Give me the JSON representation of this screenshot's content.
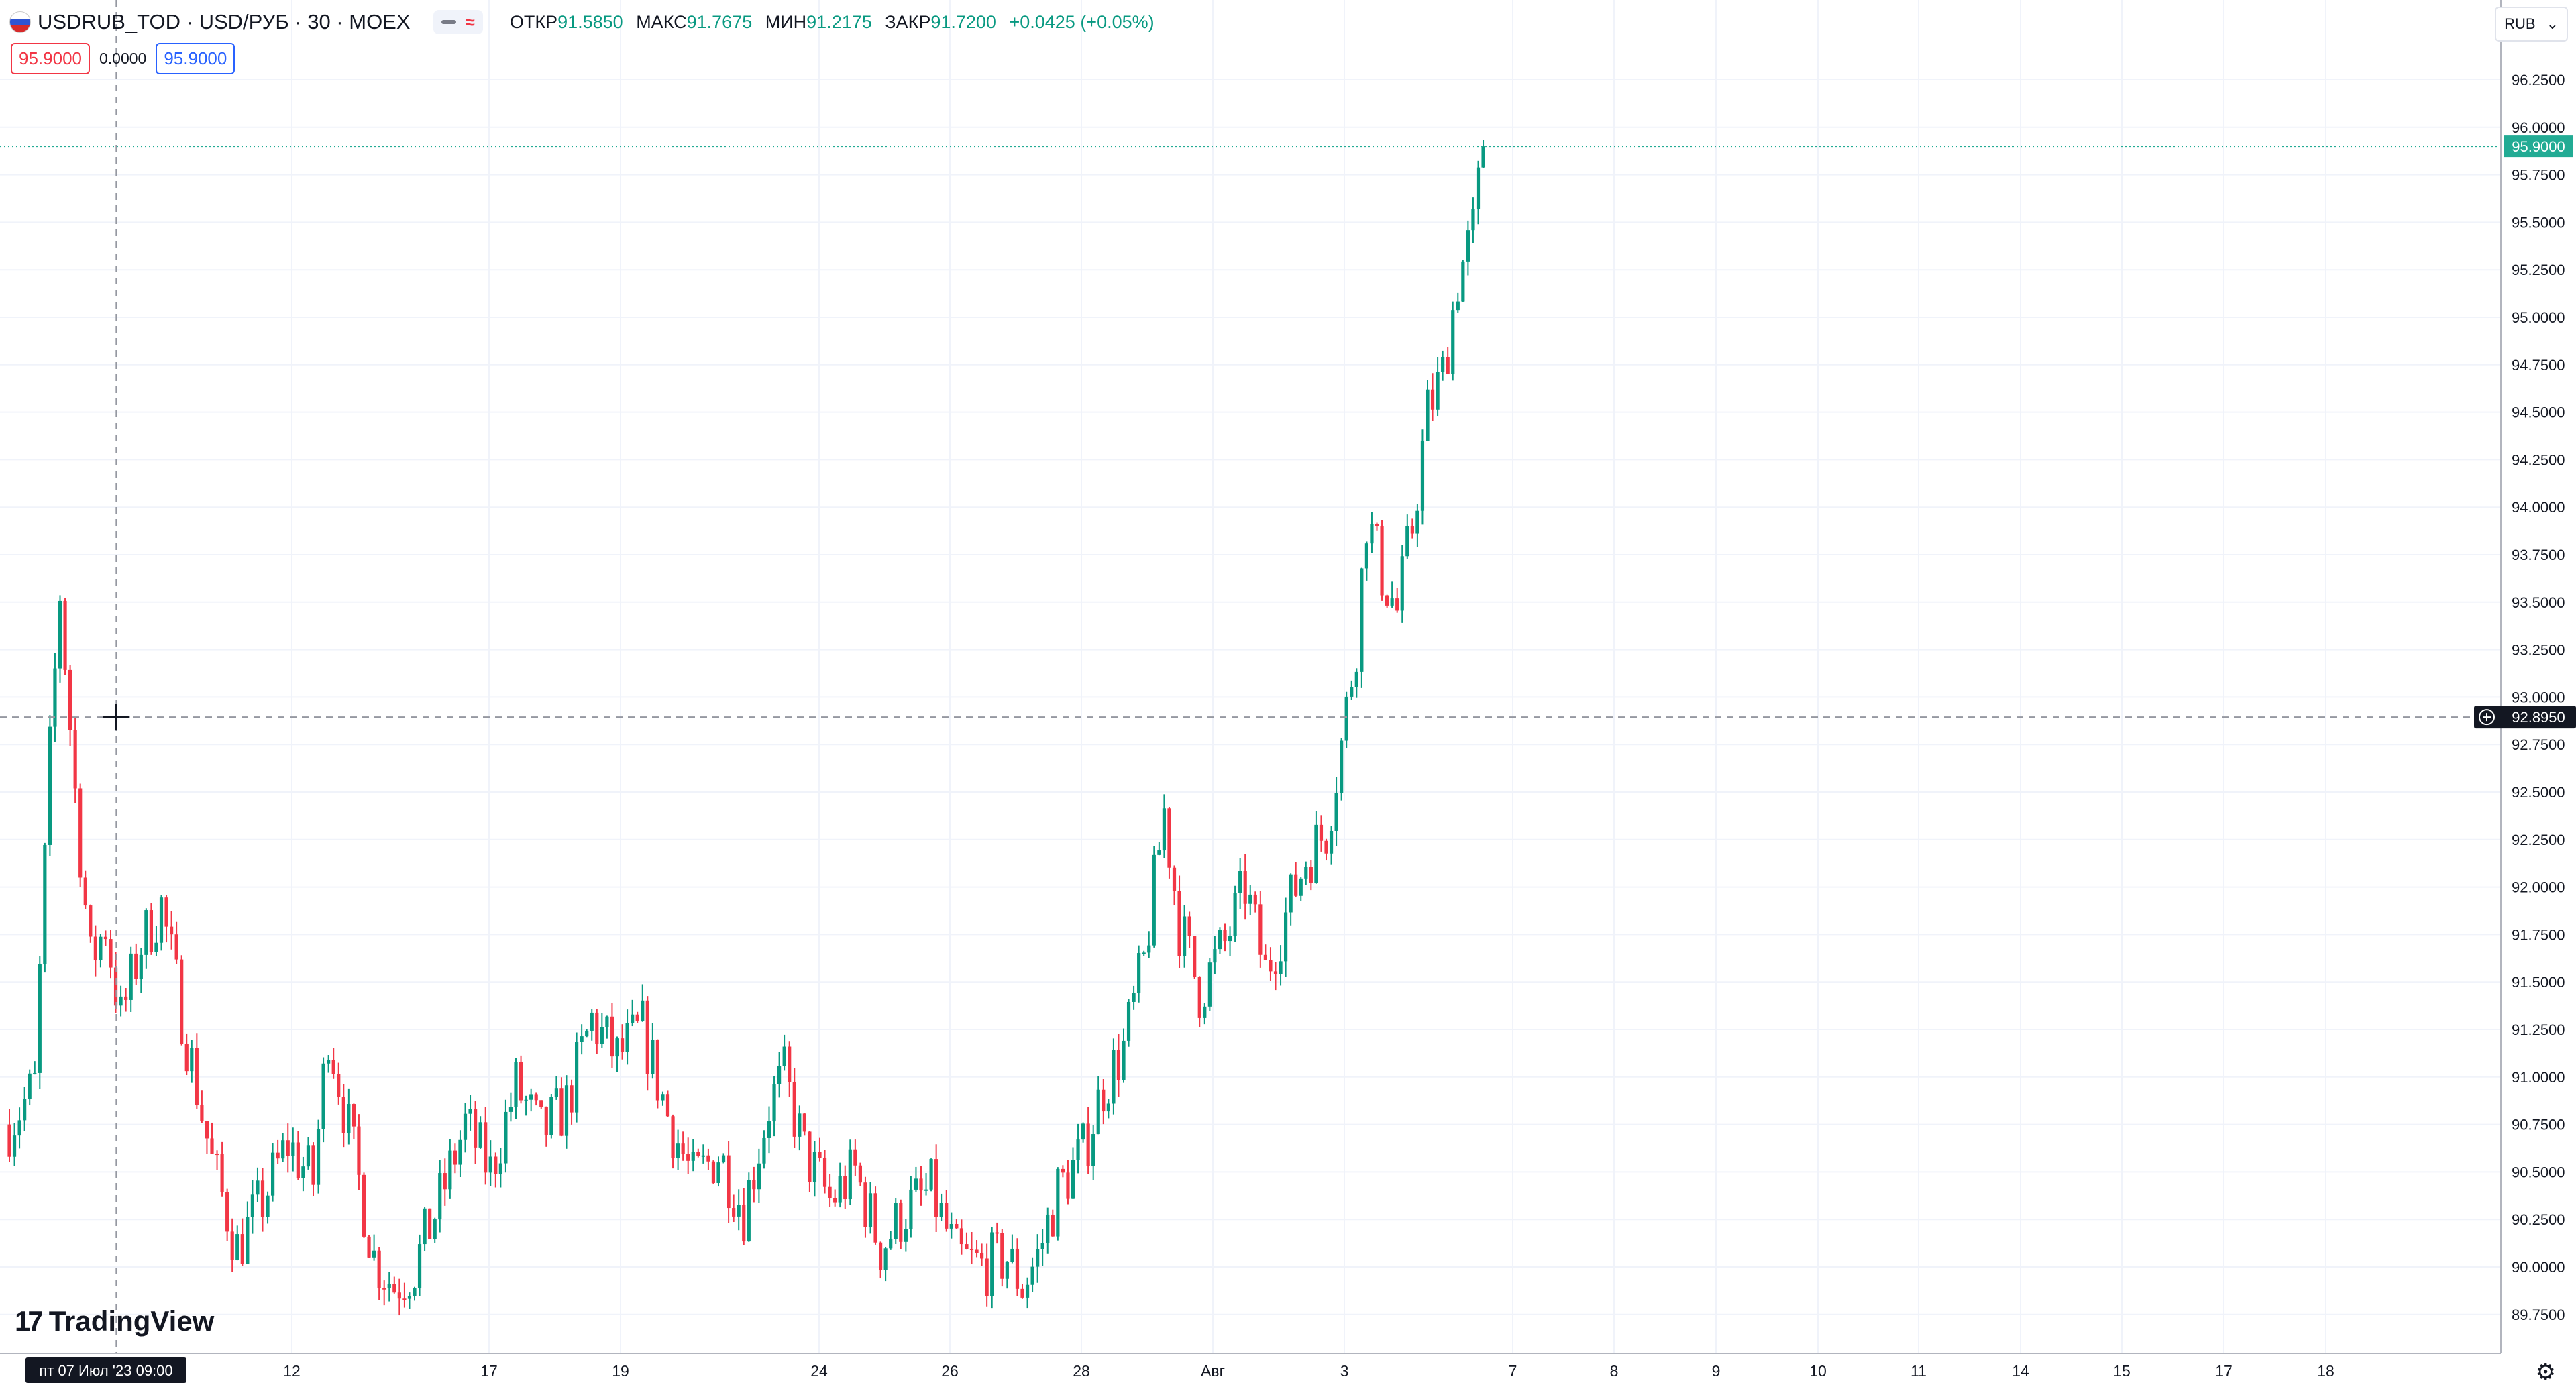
{
  "header": {
    "symbol": "USDRUB_TOD · USD/РУБ · 30 · MOEX",
    "ohlc": [
      {
        "label": "ОТКР",
        "value": "91.5850"
      },
      {
        "label": "МАКС",
        "value": "91.7675"
      },
      {
        "label": "МИН",
        "value": "91.2175"
      },
      {
        "label": "ЗАКР",
        "value": "91.7200"
      }
    ],
    "change": "+0.0425 (+0.05%)",
    "sell_price": "95.9000",
    "spread": "0.0000",
    "buy_price": "95.9000",
    "currency": "RUB",
    "indicator_glyph": "≈"
  },
  "logo": {
    "text": "TradingView",
    "mark": "17"
  },
  "crosshair": {
    "price_label": "92.8950",
    "date_label": "пт 07 Июл '23   09:00",
    "price": 92.895,
    "x_index": 17
  },
  "last_price": {
    "label": "95.9000",
    "value": 95.9
  },
  "colors": {
    "up": "#089981",
    "down": "#f23645",
    "grid": "#f0f3fa",
    "crosshair": "#9598a1",
    "last": "#22ab94"
  },
  "chart_data": {
    "type": "candlestick",
    "title": "USDRUB_TOD · USD/РУБ · 30 · MOEX",
    "timeframe": "30",
    "x_ticks": [
      "12",
      "17",
      "19",
      "24",
      "26",
      "28",
      "Авг",
      "3",
      "7",
      "8",
      "9",
      "10",
      "11",
      "14",
      "15",
      "17",
      "18"
    ],
    "y_ticks": [
      "89.7500",
      "90.0000",
      "90.2500",
      "90.5000",
      "90.7500",
      "91.0000",
      "91.2500",
      "91.5000",
      "91.7500",
      "92.0000",
      "92.2500",
      "92.5000",
      "92.7500",
      "93.0000",
      "93.2500",
      "93.5000",
      "93.7500",
      "94.0000",
      "94.2500",
      "94.5000",
      "94.7500",
      "95.0000",
      "95.2500",
      "95.5000",
      "95.7500",
      "96.0000",
      "96.2500"
    ],
    "ylim": [
      89.54,
      96.57
    ],
    "close_path_approx": [
      [
        0,
        90.75
      ],
      [
        5,
        90.95
      ],
      [
        8,
        92.7
      ],
      [
        10,
        93.55
      ],
      [
        13,
        92.5
      ],
      [
        16,
        91.6
      ],
      [
        19,
        91.8
      ],
      [
        22,
        91.3
      ],
      [
        26,
        91.7
      ],
      [
        30,
        91.9
      ],
      [
        35,
        91.2
      ],
      [
        40,
        90.55
      ],
      [
        45,
        90.1
      ],
      [
        50,
        90.35
      ],
      [
        55,
        90.65
      ],
      [
        60,
        90.45
      ],
      [
        63,
        91.25
      ],
      [
        66,
        90.85
      ],
      [
        72,
        90.05
      ],
      [
        76,
        89.9
      ],
      [
        80,
        90.0
      ],
      [
        85,
        90.35
      ],
      [
        90,
        90.75
      ],
      [
        95,
        90.5
      ],
      [
        100,
        90.95
      ],
      [
        105,
        90.7
      ],
      [
        110,
        90.85
      ],
      [
        115,
        91.3
      ],
      [
        120,
        91.1
      ],
      [
        125,
        91.25
      ],
      [
        130,
        90.8
      ],
      [
        135,
        90.45
      ],
      [
        140,
        90.6
      ],
      [
        145,
        90.3
      ],
      [
        150,
        90.85
      ],
      [
        153,
        91.0
      ],
      [
        157,
        90.6
      ],
      [
        162,
        90.35
      ],
      [
        167,
        90.5
      ],
      [
        172,
        90.1
      ],
      [
        177,
        90.3
      ],
      [
        182,
        90.4
      ],
      [
        187,
        90.05
      ],
      [
        192,
        90.0
      ],
      [
        197,
        90.05
      ],
      [
        200,
        89.9
      ],
      [
        203,
        90.05
      ],
      [
        207,
        90.4
      ],
      [
        212,
        90.6
      ],
      [
        216,
        90.95
      ],
      [
        220,
        91.15
      ],
      [
        224,
        91.6
      ],
      [
        228,
        92.4
      ],
      [
        231,
        91.8
      ],
      [
        235,
        91.45
      ],
      [
        240,
        91.7
      ],
      [
        244,
        92.0
      ],
      [
        248,
        91.55
      ],
      [
        252,
        91.85
      ],
      [
        256,
        92.15
      ],
      [
        260,
        92.3
      ],
      [
        263,
        92.75
      ],
      [
        266,
        93.3
      ],
      [
        268,
        93.95
      ],
      [
        271,
        93.65
      ],
      [
        274,
        93.45
      ],
      [
        277,
        93.9
      ],
      [
        280,
        94.5
      ],
      [
        283,
        94.7
      ],
      [
        286,
        95.2
      ],
      [
        289,
        95.45
      ],
      [
        291,
        95.9
      ]
    ]
  }
}
